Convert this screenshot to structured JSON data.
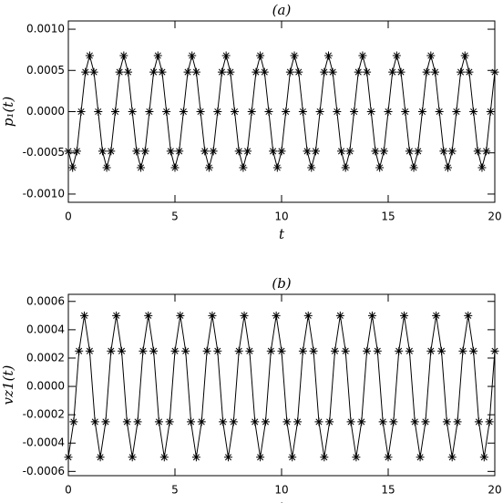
{
  "chart_data": [
    {
      "type": "line",
      "title": "(a)",
      "xlabel": "t",
      "ylabel": "p₁(t)",
      "color": "#000000",
      "markers": "asterisk",
      "xlim": [
        0,
        20
      ],
      "xticks": [
        0,
        5,
        10,
        15,
        20
      ],
      "ylim": [
        -0.0011,
        0.0011
      ],
      "yticks": [
        {
          "value": -0.001,
          "label": "-0.0010"
        },
        {
          "value": -0.0005,
          "label": "-0.0005"
        },
        {
          "value": 0,
          "label": "0.0000"
        },
        {
          "value": 0.0005,
          "label": "0.0005"
        },
        {
          "value": 0.001,
          "label": "0.0010"
        }
      ],
      "x": [
        0,
        0.2,
        0.4,
        0.6,
        0.8,
        1,
        1.2,
        1.4,
        1.6,
        1.8,
        2,
        2.2,
        2.4,
        2.6,
        2.8,
        3,
        3.2,
        3.4,
        3.6,
        3.8,
        4,
        4.2,
        4.4,
        4.6,
        4.8,
        5,
        5.2,
        5.4,
        5.6,
        5.8,
        6,
        6.2,
        6.4,
        6.6,
        6.8,
        7,
        7.2,
        7.4,
        7.6,
        7.8,
        8,
        8.2,
        8.4,
        8.6,
        8.8,
        9,
        9.2,
        9.4,
        9.6,
        9.8,
        10,
        10.2,
        10.4,
        10.6,
        10.8,
        11,
        11.2,
        11.4,
        11.6,
        11.8,
        12,
        12.2,
        12.4,
        12.6,
        12.8,
        13,
        13.2,
        13.4,
        13.6,
        13.8,
        14,
        14.2,
        14.4,
        14.6,
        14.8,
        15,
        15.2,
        15.4,
        15.6,
        15.8,
        16,
        16.2,
        16.4,
        16.6,
        16.8,
        17,
        17.2,
        17.4,
        17.6,
        17.8,
        18,
        18.2,
        18.4,
        18.6,
        18.8,
        19,
        19.2,
        19.4,
        19.6,
        19.8,
        20
      ],
      "values": [
        -0.00048,
        -0.00068,
        -0.00048,
        0,
        0.00048,
        0.00068,
        0.00048,
        0,
        -0.00048,
        -0.00068,
        -0.00048,
        0,
        0.00048,
        0.00068,
        0.00048,
        0,
        -0.00048,
        -0.00068,
        -0.00048,
        0,
        0.00048,
        0.00068,
        0.00048,
        0,
        -0.00048,
        -0.00068,
        -0.00048,
        0,
        0.00048,
        0.00068,
        0.00048,
        0,
        -0.00048,
        -0.00068,
        -0.00048,
        0,
        0.00048,
        0.00068,
        0.00048,
        0,
        -0.00048,
        -0.00068,
        -0.00048,
        0,
        0.00048,
        0.00068,
        0.00048,
        0,
        -0.00048,
        -0.00068,
        -0.00048,
        0,
        0.00048,
        0.00068,
        0.00048,
        0,
        -0.00048,
        -0.00068,
        -0.00048,
        0,
        0.00048,
        0.00068,
        0.00048,
        0,
        -0.00048,
        -0.00068,
        -0.00048,
        0,
        0.00048,
        0.00068,
        0.00048,
        0,
        -0.00048,
        -0.00068,
        -0.00048,
        0,
        0.00048,
        0.00068,
        0.00048,
        0,
        -0.00048,
        -0.00068,
        -0.00048,
        0,
        0.00048,
        0.00068,
        0.00048,
        0,
        -0.00048,
        -0.00068,
        -0.00048,
        0,
        0.00048,
        0.00068,
        0.00048,
        0,
        -0.00048,
        -0.00068,
        -0.00048,
        0,
        0.00048
      ]
    },
    {
      "type": "line",
      "title": "(b)",
      "xlabel": "t",
      "ylabel": "vz1(t)",
      "color": "#000000",
      "markers": "asterisk",
      "xlim": [
        0,
        20
      ],
      "xticks": [
        0,
        5,
        10,
        15,
        20
      ],
      "ylim": [
        -0.00063,
        0.00065
      ],
      "yticks": [
        {
          "value": -0.0006,
          "label": "-0.0006"
        },
        {
          "value": -0.0004,
          "label": "-0.0004"
        },
        {
          "value": -0.0002,
          "label": "-0.0002"
        },
        {
          "value": 0,
          "label": "0.0000"
        },
        {
          "value": 0.0002,
          "label": "0.0002"
        },
        {
          "value": 0.0004,
          "label": "0.0004"
        },
        {
          "value": 0.0006,
          "label": "0.0006"
        }
      ],
      "x": [
        0,
        0.25,
        0.5,
        0.75,
        1,
        1.25,
        1.5,
        1.75,
        2,
        2.25,
        2.5,
        2.75,
        3,
        3.25,
        3.5,
        3.75,
        4,
        4.25,
        4.5,
        4.75,
        5,
        5.25,
        5.5,
        5.75,
        6,
        6.25,
        6.5,
        6.75,
        7,
        7.25,
        7.5,
        7.75,
        8,
        8.25,
        8.5,
        8.75,
        9,
        9.25,
        9.5,
        9.75,
        10,
        10.25,
        10.5,
        10.75,
        11,
        11.25,
        11.5,
        11.75,
        12,
        12.25,
        12.5,
        12.75,
        13,
        13.25,
        13.5,
        13.75,
        14,
        14.25,
        14.5,
        14.75,
        15,
        15.25,
        15.5,
        15.75,
        16,
        16.25,
        16.5,
        16.75,
        17,
        17.25,
        17.5,
        17.75,
        18,
        18.25,
        18.5,
        18.75,
        19,
        19.25,
        19.5,
        19.75,
        20
      ],
      "values": [
        -0.0005,
        -0.00025,
        0.00025,
        0.0005,
        0.00025,
        -0.00025,
        -0.0005,
        -0.00025,
        0.00025,
        0.0005,
        0.00025,
        -0.00025,
        -0.0005,
        -0.00025,
        0.00025,
        0.0005,
        0.00025,
        -0.00025,
        -0.0005,
        -0.00025,
        0.00025,
        0.0005,
        0.00025,
        -0.00025,
        -0.0005,
        -0.00025,
        0.00025,
        0.0005,
        0.00025,
        -0.00025,
        -0.0005,
        -0.00025,
        0.00025,
        0.0005,
        0.00025,
        -0.00025,
        -0.0005,
        -0.00025,
        0.00025,
        0.0005,
        0.00025,
        -0.00025,
        -0.0005,
        -0.00025,
        0.00025,
        0.0005,
        0.00025,
        -0.00025,
        -0.0005,
        -0.00025,
        0.00025,
        0.0005,
        0.00025,
        -0.00025,
        -0.0005,
        -0.00025,
        0.00025,
        0.0005,
        0.00025,
        -0.00025,
        -0.0005,
        -0.00025,
        0.00025,
        0.0005,
        0.00025,
        -0.00025,
        -0.0005,
        -0.00025,
        0.00025,
        0.0005,
        0.00025,
        -0.00025,
        -0.0005,
        -0.00025,
        0.00025,
        0.0005,
        0.00025,
        -0.00025,
        -0.0005,
        -0.00025,
        0.00025
      ]
    }
  ]
}
